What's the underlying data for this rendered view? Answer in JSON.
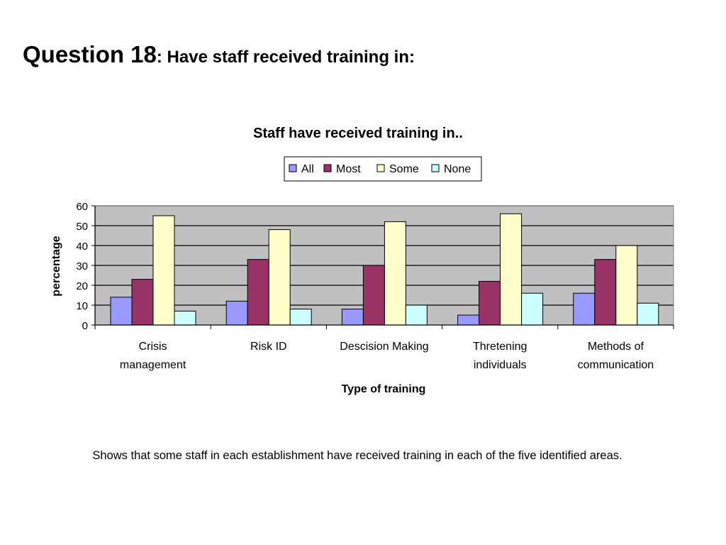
{
  "slide": {
    "title_bold": "Question 18",
    "title_rest": ": Have staff received training in:",
    "caption": "Shows that some staff in each establishment have received training in each of the five identified areas."
  },
  "chart_data": {
    "type": "bar",
    "title": "Staff have received training in..",
    "xlabel": "Type of training",
    "ylabel": "percentage",
    "ylim": [
      0,
      60
    ],
    "yticks": [
      0,
      10,
      20,
      30,
      40,
      50,
      60
    ],
    "grid": true,
    "legend_position": "top-center",
    "categories": [
      [
        "Crisis",
        "management"
      ],
      [
        "Risk ID"
      ],
      [
        "Descision Making"
      ],
      [
        "Thretening",
        "individuals"
      ],
      [
        "Methods of",
        "communication"
      ]
    ],
    "series": [
      {
        "name": "All",
        "color": "#9999ff",
        "values": [
          14,
          12,
          8,
          5,
          16
        ]
      },
      {
        "name": "Most",
        "color": "#993366",
        "values": [
          23,
          33,
          30,
          22,
          33
        ]
      },
      {
        "name": "Some",
        "color": "#ffffcc",
        "values": [
          55,
          48,
          52,
          56,
          40
        ]
      },
      {
        "name": "None",
        "color": "#ccffff",
        "values": [
          7,
          8,
          10,
          16,
          11
        ]
      }
    ],
    "plot_background": "#c0c0c0"
  }
}
